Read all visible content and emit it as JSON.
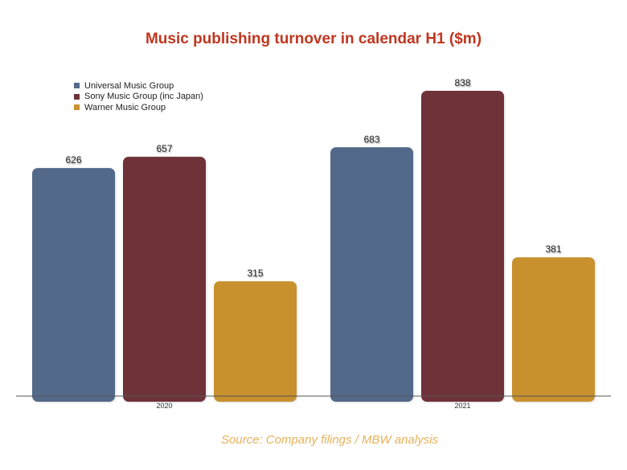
{
  "chart_data": {
    "type": "bar",
    "title": "Music publishing turnover in calendar H1 ($m)",
    "categories": [
      "2020",
      "2021"
    ],
    "series": [
      {
        "name": "Universal Music Group",
        "values": [
          626,
          683
        ],
        "color": "#52698a"
      },
      {
        "name": "Sony Music Group (inc Japan)",
        "values": [
          657,
          838
        ],
        "color": "#6e3338"
      },
      {
        "name": "Warner Music Group",
        "values": [
          315,
          381
        ],
        "color": "#c8912f"
      }
    ],
    "ylim": [
      0,
      838
    ],
    "grid": false,
    "legend_position": "top-left",
    "xlabel": "",
    "ylabel": ""
  },
  "source_note": "Source: Company filings / MBW analysis"
}
